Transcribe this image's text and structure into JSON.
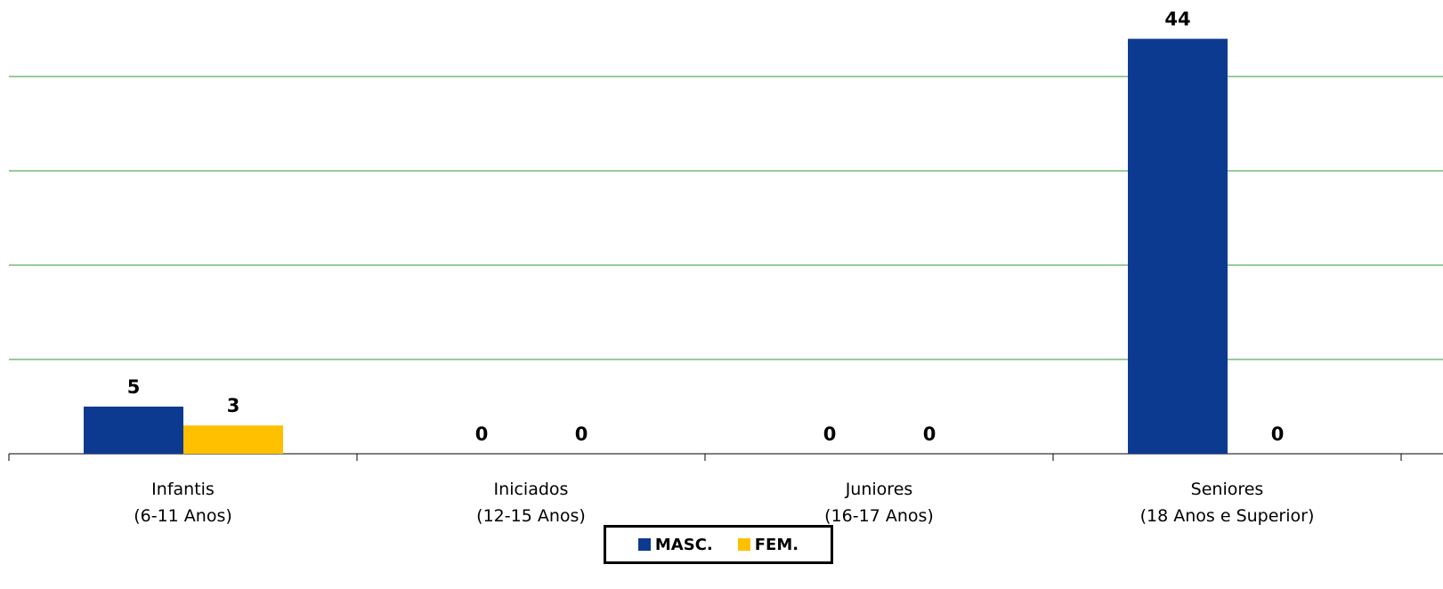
{
  "chart_data": {
    "type": "bar",
    "categories": [
      [
        "Infantis",
        "(6-11 Anos)"
      ],
      [
        "Iniciados",
        "(12-15 Anos)"
      ],
      [
        "Juniores",
        "(16-17 Anos)"
      ],
      [
        "Seniores",
        "(18 Anos e Superior)"
      ]
    ],
    "series": [
      {
        "name": "MASC.",
        "color": "#0d3a91",
        "values": [
          5,
          0,
          0,
          44
        ]
      },
      {
        "name": "FEM.",
        "color": "#ffc000",
        "values": [
          3,
          0,
          0,
          0
        ]
      }
    ],
    "ylim": [
      0,
      50
    ],
    "gridline_values": [
      10,
      20,
      30,
      40
    ],
    "grid": true,
    "gridline_color": "#339933",
    "legend_position": "bottom-center",
    "title": "",
    "xlabel": "",
    "ylabel": ""
  },
  "legend": {
    "masc_label": "MASC.",
    "fem_label": "FEM."
  }
}
